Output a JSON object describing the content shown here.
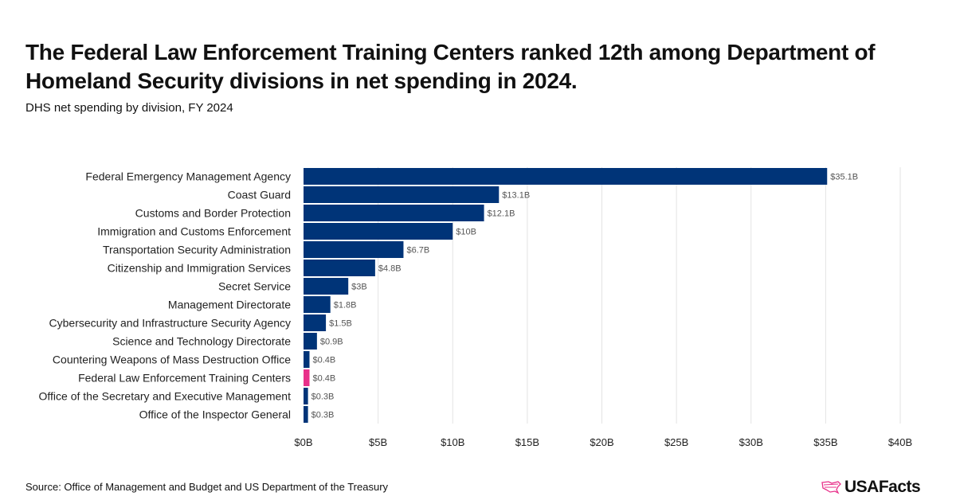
{
  "title": "The Federal Law Enforcement Training Centers ranked 12th among Department of Homeland Security divisions in net spending in 2024.",
  "subtitle": "DHS net spending by division, FY 2024",
  "source": "Source: Office of Management and Budget and US Department of the Treasury",
  "logo": "USAFacts",
  "colors": {
    "bar": "#003478",
    "highlight": "#e8308a",
    "grid": "#e3e3e3"
  },
  "chart_data": {
    "type": "bar",
    "orientation": "horizontal",
    "categories": [
      "Federal Emergency Management Agency",
      "Coast Guard",
      "Customs and Border Protection",
      "Immigration and Customs Enforcement",
      "Transportation Security Administration",
      "Citizenship and Immigration Services",
      "Secret Service",
      "Management Directorate",
      "Cybersecurity and Infrastructure Security Agency",
      "Science and Technology Directorate",
      "Countering Weapons of Mass Destruction Office",
      "Federal Law Enforcement Training Centers",
      "Office of the Secretary and Executive Management",
      "Office of the Inspector General"
    ],
    "values": [
      35.1,
      13.1,
      12.1,
      10,
      6.7,
      4.8,
      3,
      1.8,
      1.5,
      0.9,
      0.4,
      0.4,
      0.3,
      0.3
    ],
    "data_labels": [
      "$35.1B",
      "$13.1B",
      "$12.1B",
      "$10B",
      "$6.7B",
      "$4.8B",
      "$3B",
      "$1.8B",
      "$1.5B",
      "$0.9B",
      "$0.4B",
      "$0.4B",
      "$0.3B",
      "$0.3B"
    ],
    "highlight_index": 11,
    "xlim": [
      0,
      40
    ],
    "xticks": [
      0,
      5,
      10,
      15,
      20,
      25,
      30,
      35,
      40
    ],
    "xtick_labels": [
      "$0B",
      "$5B",
      "$10B",
      "$15B",
      "$20B",
      "$25B",
      "$30B",
      "$35B",
      "$40B"
    ],
    "grid": true
  }
}
